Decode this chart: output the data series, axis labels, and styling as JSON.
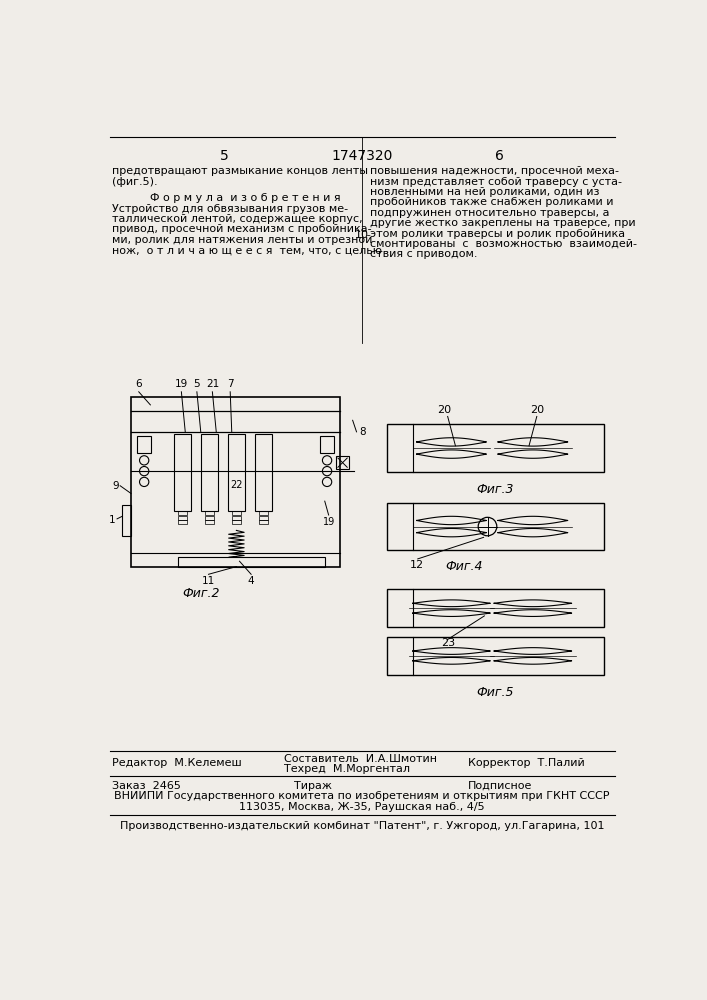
{
  "bg_color": "#f0ede8",
  "page_num_left": "5",
  "page_num_center": "1747320",
  "page_num_right": "6",
  "line_number": "10",
  "left_col_text_1": "предотвращают размыкание концов ленты",
  "left_col_text_2": "(фиг.5).",
  "formula_title": "Ф о р м у л а  и з о б р е т е н и я",
  "formula_body": [
    "Устройство для обвязывания грузов ме-",
    "таллической лентой, содержащее корпус,",
    "привод, просечной механизм с пробойника-",
    "ми, ролик для натяжения ленты и отрезной",
    "нож,  о т л и ч а ю щ е е с я  тем, что, с целью"
  ],
  "right_col_text": [
    "повышения надежности, просечной меха-",
    "низм представляет собой траверсу с уста-",
    "новленными на ней роликами, один из",
    "пробойников также снабжен роликами и",
    "подпружинен относительно траверсы, а",
    "другие жестко закреплены на траверсе, при",
    "этом ролики траверсы и ролик пробойника",
    "смонтированы  с  возможностью  взаимодей-",
    "ствия с приводом."
  ],
  "footer_editor": "Редактор  М.Келемеш",
  "footer_composer": "Составитель  И.А.Шмотин",
  "footer_techred": "Техред  М.Моргентал",
  "footer_corrector": "Корректор  Т.Палий",
  "footer_order": "Заказ  2465",
  "footer_tirazh": "Тираж",
  "footer_podpisnoe": "Подписное",
  "footer_vniipи": "ВНИИПИ Государственного комитета по изобретениям и открытиям при ГКНТ СССР",
  "footer_address": "113035, Москва, Ж-35, Раушская наб., 4/5",
  "footer_plant": "Производственно-издательский комбинат \"Патент\", г. Ужгород, ул.Гагарина, 101",
  "fig2_caption": "Фиг.2",
  "fig3_caption": "Фиг.3",
  "fig4_caption": "Фиг.4",
  "fig5_caption": "Фиг.5"
}
